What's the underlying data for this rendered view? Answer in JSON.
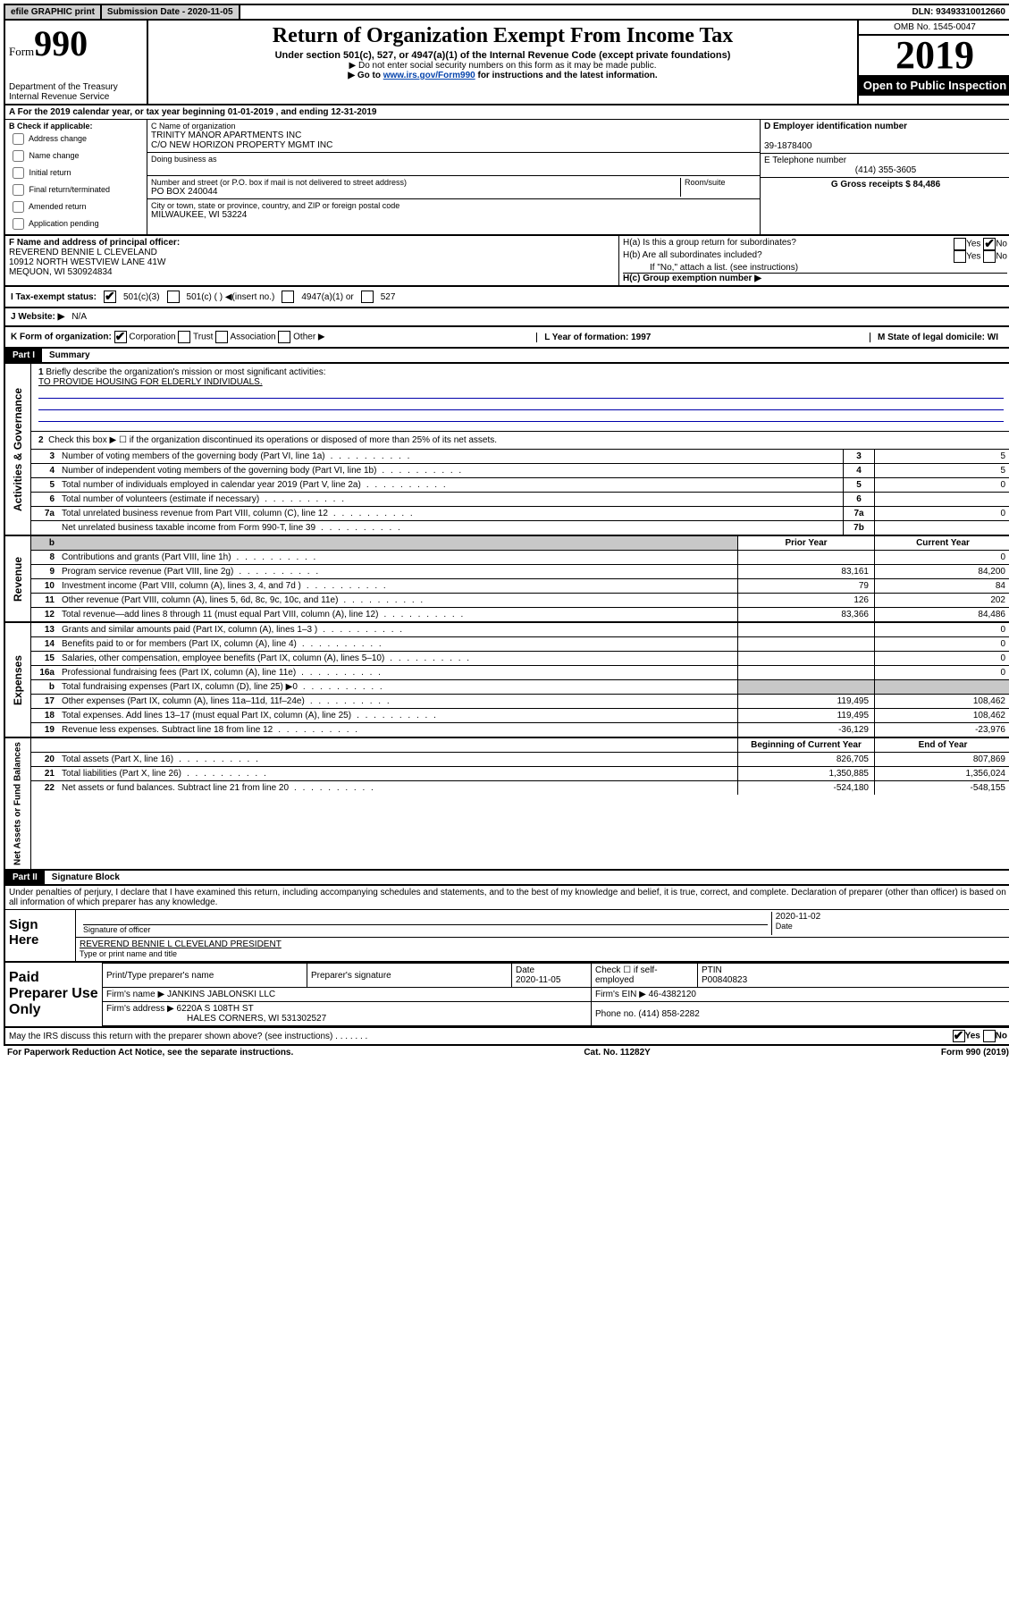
{
  "topbar": {
    "efile": "efile GRAPHIC print",
    "submission_label": "Submission Date - 2020-11-05",
    "dln": "DLN: 93493310012660"
  },
  "header": {
    "form_prefix": "Form",
    "form_number": "990",
    "dept": "Department of the Treasury\nInternal Revenue Service",
    "title": "Return of Organization Exempt From Income Tax",
    "subtitle": "Under section 501(c), 527, or 4947(a)(1) of the Internal Revenue Code (except private foundations)",
    "note1": "▶ Do not enter social security numbers on this form as it may be made public.",
    "note2_pre": "▶ Go to ",
    "note2_link": "www.irs.gov/Form990",
    "note2_post": " for instructions and the latest information.",
    "omb": "OMB No. 1545-0047",
    "tax_year": "2019",
    "open_public": "Open to Public Inspection"
  },
  "section_a": {
    "line": "A For the 2019 calendar year, or tax year beginning 01-01-2019   , and ending 12-31-2019",
    "b_header": "B Check if applicable:",
    "b_opts": [
      "Address change",
      "Name change",
      "Initial return",
      "Final return/terminated",
      "Amended return",
      "Application pending"
    ],
    "c_label": "C Name of organization",
    "c_name1": "TRINITY MANOR APARTMENTS INC",
    "c_name2": "C/O NEW HORIZON PROPERTY MGMT INC",
    "dba_label": "Doing business as",
    "addr_label": "Number and street (or P.O. box if mail is not delivered to street address)",
    "addr": "PO BOX 240044",
    "room": "Room/suite",
    "city_label": "City or town, state or province, country, and ZIP or foreign postal code",
    "city": "MILWAUKEE, WI  53224",
    "d_label": "D Employer identification number",
    "d_val": "39-1878400",
    "e_label": "E Telephone number",
    "e_val": "(414) 355-3605",
    "g_label": "G Gross receipts $ 84,486",
    "f_label": "F  Name and address of principal officer:",
    "f_name": "REVEREND BENNIE L CLEVELAND",
    "f_addr1": "10912 NORTH WESTVIEW LANE 41W",
    "f_addr2": "MEQUON, WI  530924834",
    "h_a": "H(a)  Is this a group return for subordinates?",
    "h_b": "H(b)  Are all subordinates included?",
    "h_b_note": "If \"No,\" attach a list. (see instructions)",
    "h_c": "H(c)  Group exemption number ▶",
    "yes": "Yes",
    "no": "No",
    "i_label": "I    Tax-exempt status:",
    "i_501c3": "501(c)(3)",
    "i_501c": "501(c) (  ) ◀(insert no.)",
    "i_4947": "4947(a)(1) or",
    "i_527": "527",
    "j_label": "J   Website: ▶",
    "j_val": "N/A",
    "k_label": "K Form of organization:",
    "k_corp": "Corporation",
    "k_trust": "Trust",
    "k_assoc": "Association",
    "k_other": "Other ▶",
    "l_label": "L Year of formation: 1997",
    "m_label": "M State of legal domicile: WI"
  },
  "part1": {
    "header": "Part I",
    "title": "Summary",
    "vert_gov": "Activities & Governance",
    "vert_rev": "Revenue",
    "vert_exp": "Expenses",
    "vert_net": "Net Assets or Fund Balances",
    "line1": "Briefly describe the organization's mission or most significant activities:",
    "mission": "TO PROVIDE HOUSING FOR ELDERLY INDIVIDUALS.",
    "line2": "Check this box ▶ ☐  if the organization discontinued its operations or disposed of more than 25% of its net assets.",
    "rows_gov": [
      {
        "n": "3",
        "d": "Number of voting members of the governing body (Part VI, line 1a)",
        "ln": "3",
        "v": "5"
      },
      {
        "n": "4",
        "d": "Number of independent voting members of the governing body (Part VI, line 1b)",
        "ln": "4",
        "v": "5"
      },
      {
        "n": "5",
        "d": "Total number of individuals employed in calendar year 2019 (Part V, line 2a)",
        "ln": "5",
        "v": "0"
      },
      {
        "n": "6",
        "d": "Total number of volunteers (estimate if necessary)",
        "ln": "6",
        "v": ""
      },
      {
        "n": "7a",
        "d": "Total unrelated business revenue from Part VIII, column (C), line 12",
        "ln": "7a",
        "v": "0"
      },
      {
        "n": "",
        "d": "Net unrelated business taxable income from Form 990-T, line 39",
        "ln": "7b",
        "v": ""
      }
    ],
    "header_prior": "Prior Year",
    "header_current": "Current Year",
    "rows_rev": [
      {
        "n": "8",
        "d": "Contributions and grants (Part VIII, line 1h)",
        "p": "",
        "c": "0"
      },
      {
        "n": "9",
        "d": "Program service revenue (Part VIII, line 2g)",
        "p": "83,161",
        "c": "84,200"
      },
      {
        "n": "10",
        "d": "Investment income (Part VIII, column (A), lines 3, 4, and 7d )",
        "p": "79",
        "c": "84"
      },
      {
        "n": "11",
        "d": "Other revenue (Part VIII, column (A), lines 5, 6d, 8c, 9c, 10c, and 11e)",
        "p": "126",
        "c": "202"
      },
      {
        "n": "12",
        "d": "Total revenue—add lines 8 through 11 (must equal Part VIII, column (A), line 12)",
        "p": "83,366",
        "c": "84,486"
      }
    ],
    "rows_exp": [
      {
        "n": "13",
        "d": "Grants and similar amounts paid (Part IX, column (A), lines 1–3 )",
        "p": "",
        "c": "0"
      },
      {
        "n": "14",
        "d": "Benefits paid to or for members (Part IX, column (A), line 4)",
        "p": "",
        "c": "0"
      },
      {
        "n": "15",
        "d": "Salaries, other compensation, employee benefits (Part IX, column (A), lines 5–10)",
        "p": "",
        "c": "0"
      },
      {
        "n": "16a",
        "d": "Professional fundraising fees (Part IX, column (A), line 11e)",
        "p": "",
        "c": "0"
      },
      {
        "n": "b",
        "d": "Total fundraising expenses (Part IX, column (D), line 25) ▶0",
        "p": "shade",
        "c": "shade"
      },
      {
        "n": "17",
        "d": "Other expenses (Part IX, column (A), lines 11a–11d, 11f–24e)",
        "p": "119,495",
        "c": "108,462"
      },
      {
        "n": "18",
        "d": "Total expenses. Add lines 13–17 (must equal Part IX, column (A), line 25)",
        "p": "119,495",
        "c": "108,462"
      },
      {
        "n": "19",
        "d": "Revenue less expenses. Subtract line 18 from line 12",
        "p": "-36,129",
        "c": "-23,976"
      }
    ],
    "header_begin": "Beginning of Current Year",
    "header_end": "End of Year",
    "rows_net": [
      {
        "n": "20",
        "d": "Total assets (Part X, line 16)",
        "p": "826,705",
        "c": "807,869"
      },
      {
        "n": "21",
        "d": "Total liabilities (Part X, line 26)",
        "p": "1,350,885",
        "c": "1,356,024"
      },
      {
        "n": "22",
        "d": "Net assets or fund balances. Subtract line 21 from line 20",
        "p": "-524,180",
        "c": "-548,155"
      }
    ]
  },
  "part2": {
    "header": "Part II",
    "title": "Signature Block",
    "declare": "Under penalties of perjury, I declare that I have examined this return, including accompanying schedules and statements, and to the best of my knowledge and belief, it is true, correct, and complete. Declaration of preparer (other than officer) is based on all information of which preparer has any knowledge.",
    "sign_here": "Sign Here",
    "sig_officer": "Signature of officer",
    "sig_date": "2020-11-02",
    "sig_date_label": "Date",
    "officer_name": "REVEREND BENNIE L CLEVELAND  PRESIDENT",
    "officer_type": "Type or print name and title",
    "paid": "Paid Preparer Use Only",
    "prep_name_label": "Print/Type preparer's name",
    "prep_sig_label": "Preparer's signature",
    "prep_date_label": "Date",
    "prep_date": "2020-11-05",
    "prep_check": "Check ☐ if self-employed",
    "ptin_label": "PTIN",
    "ptin": "P00840823",
    "firm_name_label": "Firm's name    ▶",
    "firm_name": "JANKINS JABLONSKI LLC",
    "firm_ein_label": "Firm's EIN ▶",
    "firm_ein": "46-4382120",
    "firm_addr_label": "Firm's address ▶",
    "firm_addr1": "6220A S 108TH ST",
    "firm_addr2": "HALES CORNERS, WI  531302527",
    "phone_label": "Phone no. (414) 858-2282",
    "discuss": "May the IRS discuss this return with the preparer shown above? (see instructions)",
    "footer_left": "For Paperwork Reduction Act Notice, see the separate instructions.",
    "footer_mid": "Cat. No. 11282Y",
    "footer_right": "Form 990 (2019)"
  }
}
